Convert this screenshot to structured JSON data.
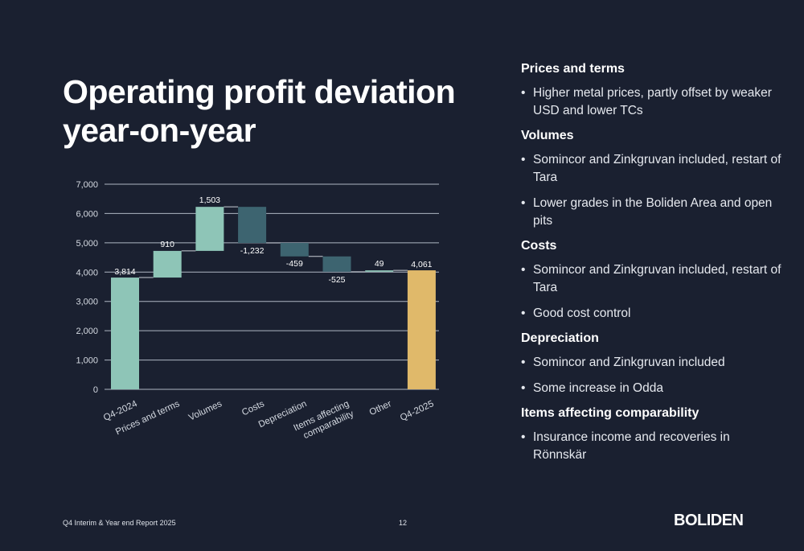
{
  "title_lines": [
    "Operating profit deviation",
    "year-on-year"
  ],
  "chart_data": {
    "type": "bar",
    "subtype": "waterfall",
    "categories": [
      "Q4-2024",
      "Prices and terms",
      "Volumes",
      "Costs",
      "Depreciation",
      "Items affecting comparability",
      "Other",
      "Q4-2025"
    ],
    "category_label_lines": [
      [
        "Q4-2024"
      ],
      [
        "Prices and terms"
      ],
      [
        "Volumes"
      ],
      [
        "Costs"
      ],
      [
        "Depreciation"
      ],
      [
        "Items affecting",
        "comparability"
      ],
      [
        "Other"
      ],
      [
        "Q4-2025"
      ]
    ],
    "values": [
      3814,
      910,
      1503,
      -1232,
      -459,
      -525,
      49,
      4061
    ],
    "data_labels": [
      "3,814",
      "910",
      "1,503",
      "-1,232",
      "-459",
      "-525",
      "49",
      "4,061"
    ],
    "kinds": [
      "total",
      "delta",
      "delta",
      "delta",
      "delta",
      "delta",
      "delta",
      "total"
    ],
    "y_ticks": [
      0,
      1000,
      2000,
      3000,
      4000,
      5000,
      6000,
      7000
    ],
    "y_tick_labels": [
      "0",
      "1,000",
      "2,000",
      "3,000",
      "4,000",
      "5,000",
      "6,000",
      "7,000"
    ],
    "ylim": [
      0,
      7000
    ],
    "grid": true,
    "title": "",
    "xlabel": "",
    "ylabel": "",
    "colors": {
      "start_total": "#8ec5b7",
      "increase": "#8ec5b7",
      "decrease": "#3d6470",
      "end_total": "#e0b96a",
      "grid": "#aeb6c2",
      "axis_text": "#d5dae2",
      "connector": "#c9ced6"
    }
  },
  "notes": [
    {
      "heading": "Prices and terms",
      "bullets": [
        "Higher metal prices, partly offset by weaker USD and lower TCs"
      ]
    },
    {
      "heading": "Volumes",
      "bullets": [
        "Somincor and Zinkgruvan included, restart of Tara",
        "Lower grades in the Boliden Area and open pits"
      ]
    },
    {
      "heading": "Costs",
      "bullets": [
        "Somincor and Zinkgruvan included, restart of Tara",
        "Good cost control"
      ]
    },
    {
      "heading": "Depreciation",
      "bullets": [
        "Somincor and Zinkgruvan included",
        "Some increase in Odda"
      ]
    },
    {
      "heading": "Items affecting comparability",
      "bullets": [
        "Insurance income and recoveries in Rönnskär"
      ]
    }
  ],
  "footer": {
    "report": "Q4 Interim & Year end Report 2025",
    "page": "12",
    "logo": "BOLIDEN"
  },
  "colors": {
    "background": "#1a2030",
    "text": "#ffffff"
  }
}
